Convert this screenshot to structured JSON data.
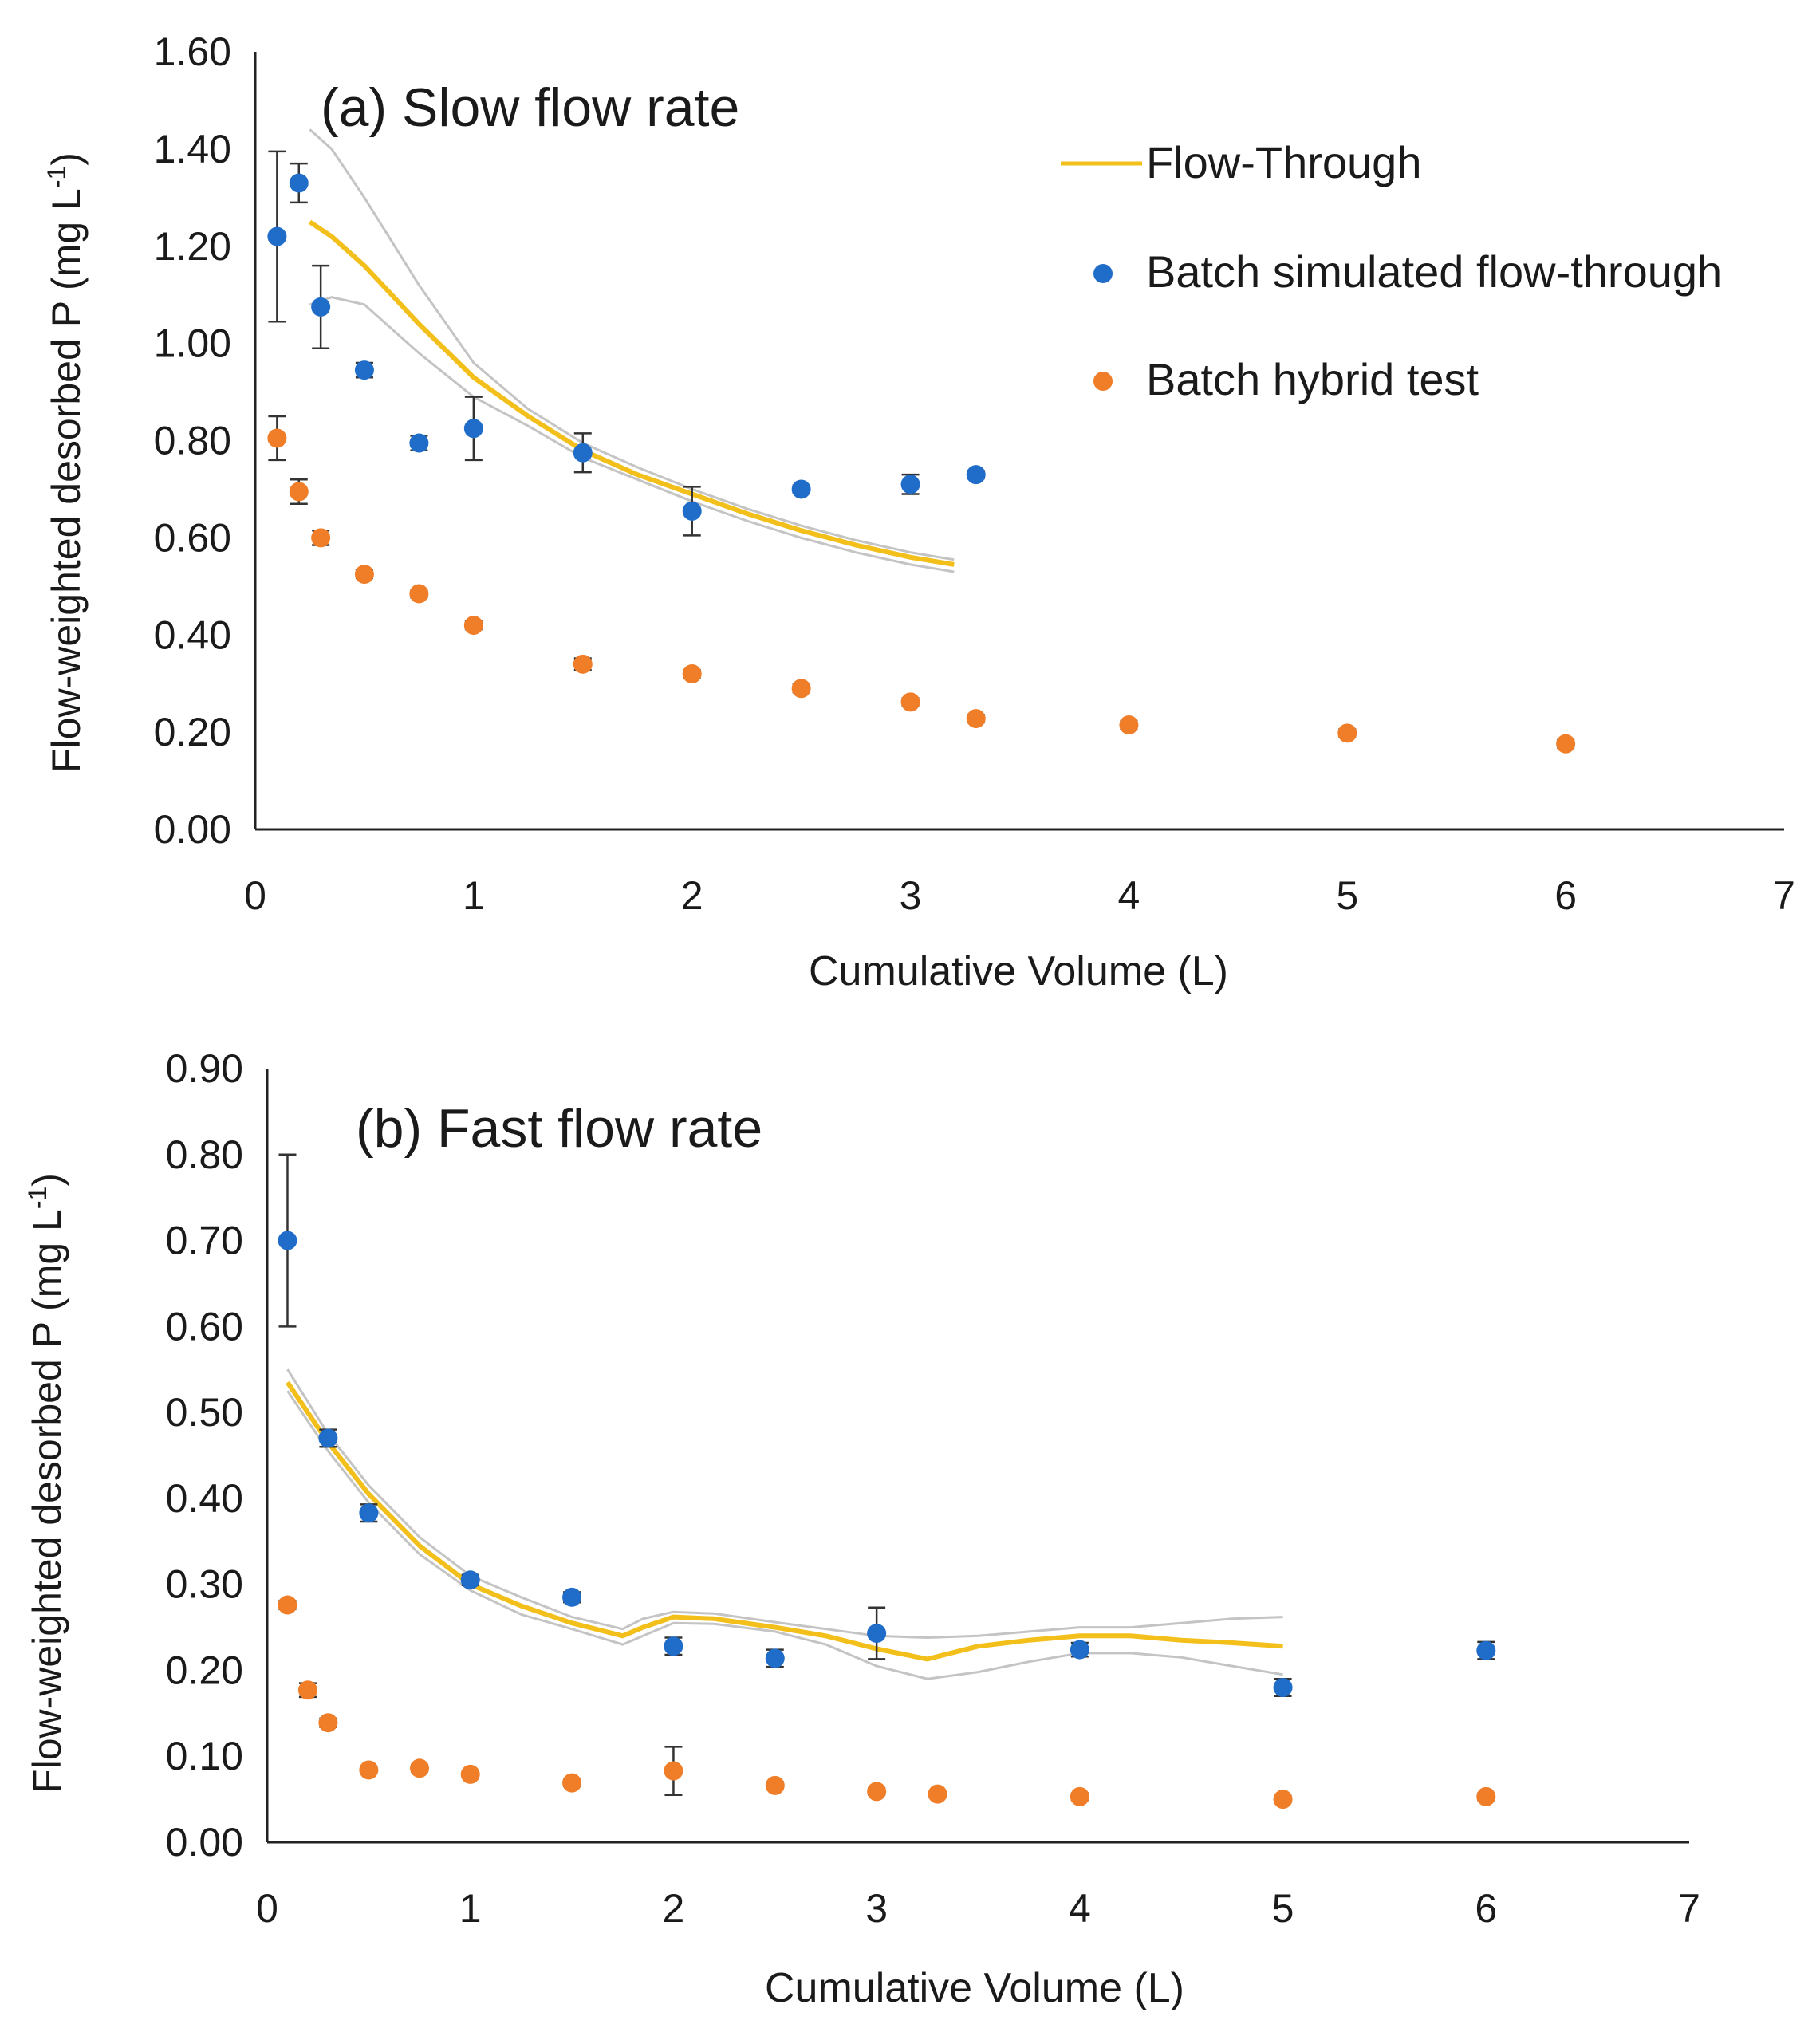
{
  "colors": {
    "flow_through": "#f2bf1b",
    "flow_through_band": "#c4c4c4",
    "batch_simulated": "#1f6dc8",
    "batch_hybrid": "#f07d28",
    "axis": "#222222",
    "error_bar": "#333333"
  },
  "legend": {
    "flow_through": "Flow-Through",
    "batch_simulated": "Batch simulated flow-through",
    "batch_hybrid": "Batch hybrid test"
  },
  "chart_data": [
    {
      "type": "scatter",
      "panel": "a",
      "title": "(a) Slow flow rate",
      "xlabel": "Cumulative Volume (L)",
      "ylabel_main": "Flow-weighted desorbed P (mg L",
      "ylabel_sup": "-1",
      "ylabel_close": ")",
      "xlim": [
        0,
        7
      ],
      "ylim": [
        0,
        1.6
      ],
      "x_ticks": [
        "0",
        "1",
        "2",
        "3",
        "4",
        "5",
        "6",
        "7"
      ],
      "y_ticks": [
        "0.00",
        "0.20",
        "0.40",
        "0.60",
        "0.80",
        "1.00",
        "1.20",
        "1.40",
        "1.60"
      ],
      "series": [
        {
          "name": "Flow-Through",
          "kind": "line",
          "x": [
            0.25,
            0.35,
            0.5,
            0.75,
            1.0,
            1.25,
            1.5,
            1.75,
            2.0,
            2.25,
            2.5,
            2.75,
            3.0,
            3.2
          ],
          "y": [
            1.25,
            1.22,
            1.16,
            1.04,
            0.93,
            0.85,
            0.78,
            0.73,
            0.69,
            0.65,
            0.615,
            0.585,
            0.56,
            0.545
          ],
          "upper": [
            1.44,
            1.4,
            1.3,
            1.12,
            0.96,
            0.865,
            0.795,
            0.745,
            0.7,
            0.66,
            0.625,
            0.595,
            0.57,
            0.555
          ],
          "lower": [
            1.08,
            1.095,
            1.08,
            0.98,
            0.89,
            0.83,
            0.765,
            0.72,
            0.675,
            0.635,
            0.6,
            0.57,
            0.545,
            0.53
          ]
        },
        {
          "name": "Batch simulated flow-through",
          "kind": "scatter",
          "x": [
            0.1,
            0.2,
            0.3,
            0.5,
            0.75,
            1.0,
            1.5,
            2.0,
            2.5,
            3.0,
            3.3
          ],
          "y": [
            1.22,
            1.33,
            1.075,
            0.945,
            0.795,
            0.825,
            0.775,
            0.655,
            0.7,
            0.71,
            0.73
          ],
          "err": [
            0.175,
            0.04,
            0.085,
            0.015,
            0.015,
            0.065,
            0.04,
            0.05,
            0.008,
            0.02,
            0.008
          ]
        },
        {
          "name": "Batch hybrid test",
          "kind": "scatter",
          "x": [
            0.1,
            0.2,
            0.3,
            0.5,
            0.75,
            1.0,
            1.5,
            2.0,
            2.5,
            3.0,
            3.3,
            4.0,
            5.0,
            6.0
          ],
          "y": [
            0.805,
            0.695,
            0.6,
            0.525,
            0.485,
            0.42,
            0.34,
            0.32,
            0.29,
            0.262,
            0.228,
            0.215,
            0.198,
            0.176
          ],
          "err": [
            0.045,
            0.025,
            0.015,
            0.008,
            0.008,
            0.008,
            0.012,
            0.008,
            0.008,
            0.008,
            0.008,
            0.008,
            0.008,
            0.008
          ]
        }
      ]
    },
    {
      "type": "scatter",
      "panel": "b",
      "title": "(b) Fast flow rate",
      "xlabel": "Cumulative Volume (L)",
      "ylabel_main": "Flow-weighted desorbed P (mg L",
      "ylabel_sup": "-1",
      "ylabel_close": ")",
      "xlim": [
        0,
        7
      ],
      "ylim": [
        0,
        0.9
      ],
      "x_ticks": [
        "0",
        "1",
        "2",
        "3",
        "4",
        "5",
        "6",
        "7"
      ],
      "y_ticks": [
        "0.00",
        "0.10",
        "0.20",
        "0.30",
        "0.40",
        "0.50",
        "0.60",
        "0.70",
        "0.80",
        "0.90"
      ],
      "series": [
        {
          "name": "Flow-Through",
          "kind": "line",
          "x": [
            0.1,
            0.3,
            0.5,
            0.75,
            1.0,
            1.25,
            1.5,
            1.75,
            1.85,
            2.0,
            2.2,
            2.5,
            2.75,
            3.0,
            3.25,
            3.5,
            3.75,
            4.0,
            4.25,
            4.5,
            4.75,
            5.0
          ],
          "y": [
            0.535,
            0.465,
            0.405,
            0.345,
            0.3,
            0.275,
            0.255,
            0.24,
            0.25,
            0.262,
            0.26,
            0.25,
            0.24,
            0.225,
            0.213,
            0.228,
            0.235,
            0.24,
            0.24,
            0.235,
            0.232,
            0.228
          ],
          "upper": [
            0.55,
            0.475,
            0.415,
            0.355,
            0.31,
            0.285,
            0.262,
            0.248,
            0.26,
            0.268,
            0.266,
            0.256,
            0.248,
            0.24,
            0.238,
            0.24,
            0.245,
            0.25,
            0.25,
            0.255,
            0.26,
            0.262
          ],
          "lower": [
            0.525,
            0.455,
            0.395,
            0.335,
            0.293,
            0.265,
            0.248,
            0.23,
            0.24,
            0.255,
            0.254,
            0.245,
            0.23,
            0.205,
            0.19,
            0.198,
            0.21,
            0.22,
            0.22,
            0.215,
            0.205,
            0.195
          ]
        },
        {
          "name": "Batch simulated flow-through",
          "kind": "scatter",
          "x": [
            0.1,
            0.3,
            0.5,
            1.0,
            1.5,
            2.0,
            2.5,
            3.0,
            4.0,
            5.0,
            6.0
          ],
          "y": [
            0.7,
            0.47,
            0.383,
            0.305,
            0.285,
            0.228,
            0.214,
            0.243,
            0.224,
            0.18,
            0.223
          ],
          "err": [
            0.1,
            0.01,
            0.01,
            0.006,
            0.006,
            0.01,
            0.01,
            0.03,
            0.008,
            0.01,
            0.01
          ]
        },
        {
          "name": "Batch hybrid test",
          "kind": "scatter",
          "x": [
            0.1,
            0.2,
            0.3,
            0.5,
            0.75,
            1.0,
            1.5,
            2.0,
            2.5,
            3.0,
            3.3,
            4.0,
            5.0,
            6.0
          ],
          "y": [
            0.276,
            0.177,
            0.139,
            0.084,
            0.086,
            0.079,
            0.069,
            0.083,
            0.066,
            0.059,
            0.056,
            0.053,
            0.05,
            0.053
          ],
          "err": [
            0.005,
            0.008,
            0.005,
            0.004,
            0.004,
            0.004,
            0.004,
            0.028,
            0.004,
            0.004,
            0.004,
            0.004,
            0.004,
            0.004
          ]
        }
      ]
    }
  ]
}
